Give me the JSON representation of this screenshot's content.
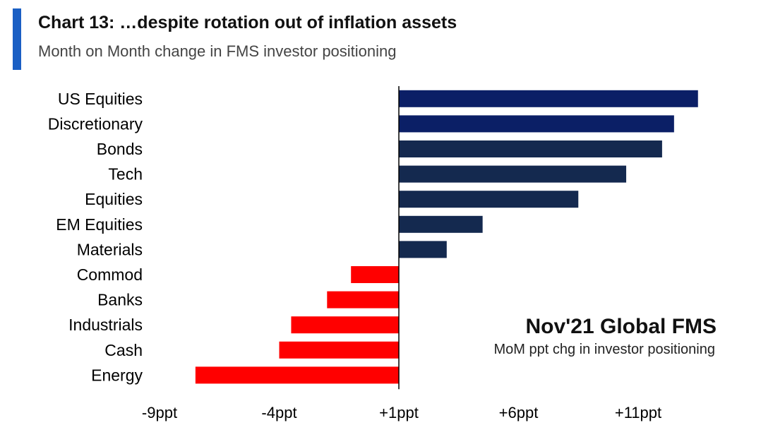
{
  "header": {
    "title": "Chart 13: …despite rotation out of inflation assets",
    "subtitle": "Month on Month change in FMS investor positioning"
  },
  "annotation": {
    "title": "Nov'21 Global FMS",
    "subtitle": "MoM ppt chg in investor positioning"
  },
  "colors": {
    "accent": "#1a5fc4",
    "positive": "#14294f",
    "positive_top": "#0b1f66",
    "negative": "#ff0000",
    "axis": "#000000"
  },
  "chart_data": {
    "type": "bar",
    "orientation": "horizontal",
    "title": "Chart 13: …despite rotation out of inflation assets",
    "subtitle": "Month on Month change in FMS investor positioning",
    "xlabel": "",
    "ylabel": "",
    "xlim": [
      -9,
      11
    ],
    "x_ticks": [
      -9,
      -4,
      1,
      6,
      11
    ],
    "x_tick_labels": [
      "-9ppt",
      "-4ppt",
      "+1ppt",
      "+6ppt",
      "+11ppt"
    ],
    "baseline": 1,
    "categories": [
      "US Equities",
      "Discretionary",
      "Bonds",
      "Tech",
      "Equities",
      "EM Equities",
      "Materials",
      "Commod",
      "Banks",
      "Industrials",
      "Cash",
      "Energy"
    ],
    "values": [
      13.5,
      12.5,
      12.0,
      10.5,
      8.5,
      4.5,
      3.0,
      -1.0,
      -2.0,
      -3.5,
      -4.0,
      -7.5
    ],
    "grid": false,
    "legend": "none"
  }
}
